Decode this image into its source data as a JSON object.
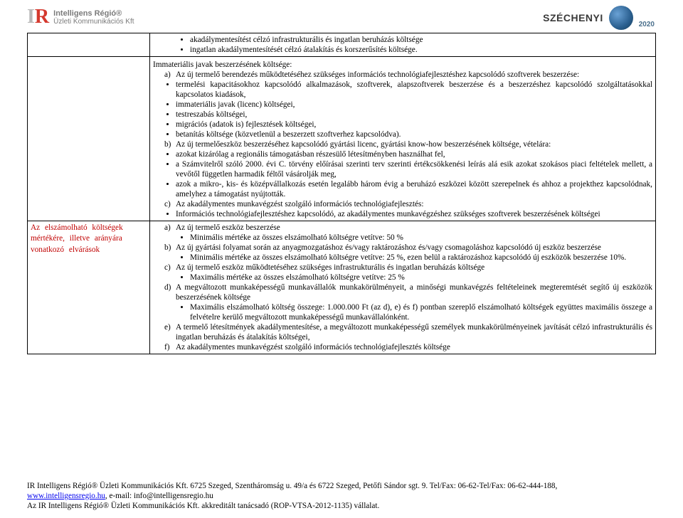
{
  "header": {
    "logo_line1": "Intelligens Régió®",
    "logo_line2": "Üzleti Kommunikációs Kft",
    "right_text": "SZÉCHENYI",
    "right_year": "2020"
  },
  "row1": {
    "b1": "akadálymentesítést célzó infrastrukturális és ingatlan beruházás költsége",
    "b2": "ingatlan akadálymentesítését célzó átalakítás és korszerűsítés költsége."
  },
  "row2": {
    "intro": "Immateriális javak beszerzésének költsége:",
    "a_label": "a)",
    "a_text": "Az új termelő berendezés működtetéséhez szükséges információs technológiafejlesztéshez kapcsolódó szoftverek beszerzése:",
    "a_sub1": "termelési kapacitásokhoz kapcsolódó alkalmazások, szoftverek, alapszoftverek beszerzése és a beszerzéshez kapcsolódó szolgáltatásokkal kapcsolatos kiadások,",
    "a_sub2": "immateriális javak (licenc) költségei,",
    "a_sub3": "testreszabás költségei,",
    "a_sub4": "migrációs (adatok is) fejlesztések költségei,",
    "a_sub5": "betanítás költsége (közvetlenül a beszerzett szoftverhez kapcsolódva).",
    "b_label": "b)",
    "b_text": "Az új termelőeszköz beszerzéséhez kapcsolódó gyártási licenc, gyártási know-how beszerzésének költsége, vételára:",
    "b_sub1": "azokat kizárólag a regionális támogatásban részesülő létesítményben használhat fel,",
    "b_sub2": "a Számvitelről szóló 2000. évi C. törvény előírásai szerinti terv szerinti értékcsökkenési leírás alá esik azokat szokásos piaci feltételek mellett, a vevőtől független harmadik féltől vásárolják meg,",
    "b_sub3": "azok a mikro-, kis- és középvállalkozás esetén legalább három évig a beruházó eszközei között szerepelnek és ahhoz a projekthez kapcsolódnak, amelyhez a támogatást nyújtották.",
    "c_label": "c)",
    "c_text": "Az akadálymentes munkavégzést szolgáló információs technológiafejlesztés:",
    "c_sub1": "Információs technológiafejlesztéshez kapcsolódó, az akadálymentes munkavégzéshez szükséges szoftverek beszerzésének költségei"
  },
  "row3": {
    "left1": "Az elszámolható költségek",
    "left2": "mértékére, illetve arányára",
    "left3": "vonatkozó elvárások",
    "a_label": "a)",
    "a_text": "Az új termelő eszköz beszerzése",
    "a_sub": "Minimális mértéke az összes elszámolható költségre vetítve: 50 %",
    "b_label": "b)",
    "b_text": "Az új gyártási folyamat során az anyagmozgatáshoz és/vagy raktározáshoz és/vagy csomagoláshoz kapcsolódó új eszköz beszerzése",
    "b_sub": "Minimális mértéke az összes elszámolható költségre vetítve: 25 %, ezen belül a raktározáshoz kapcsolódó új eszközök beszerzése 10%.",
    "c_label": "c)",
    "c_text": "Az új termelő eszköz működtetéséhez szükséges infrastrukturális és ingatlan beruházás költsége",
    "c_sub": "Maximális mértéke az összes elszámolható költségre vetítve: 25 %",
    "d_label": "d)",
    "d_text": "A megváltozott munkaképességű munkavállalók munkakörülményeit, a minőségi munkavégzés feltételeinek megteremtését segítő új eszközök beszerzésének költsége",
    "d_sub": "Maximális elszámolható költség összege: 1.000.000 Ft (az d), e) és f) pontban szereplő elszámolható költségek együttes maximális összege a felvételre kerülő megváltozott munkaképességű munkavállalónként.",
    "e_label": "e)",
    "e_text": "A termelő létesítmények akadálymentesítése, a megváltozott munkaképességű személyek munkakörülményeinek javítását célzó infrastrukturális és ingatlan beruházás és átalakítás költségei,",
    "f_label": "f)",
    "f_text": "Az akadálymentes munkavégzést szolgáló információs technológiafejlesztés költsége"
  },
  "footer": {
    "line1a": "IR Intelligens Régió® Üzleti Kommunikációs Kft. 6725 Szeged, Szentháromság u. 49/a és 6722 Szeged, Petőfi Sándor sgt. 9. Tel/Fax: 06-62-Tel/Fax: 06-62-444-188,",
    "link": "www.intelligensregio.hu",
    "line1b": ", e-mail: info@intelligensregio.hu",
    "line2": "Az IR Intelligens Régió® Üzleti Kommunikációs Kft. akkreditált tanácsadó (ROP-VTSA-2012-1135) vállalat."
  }
}
